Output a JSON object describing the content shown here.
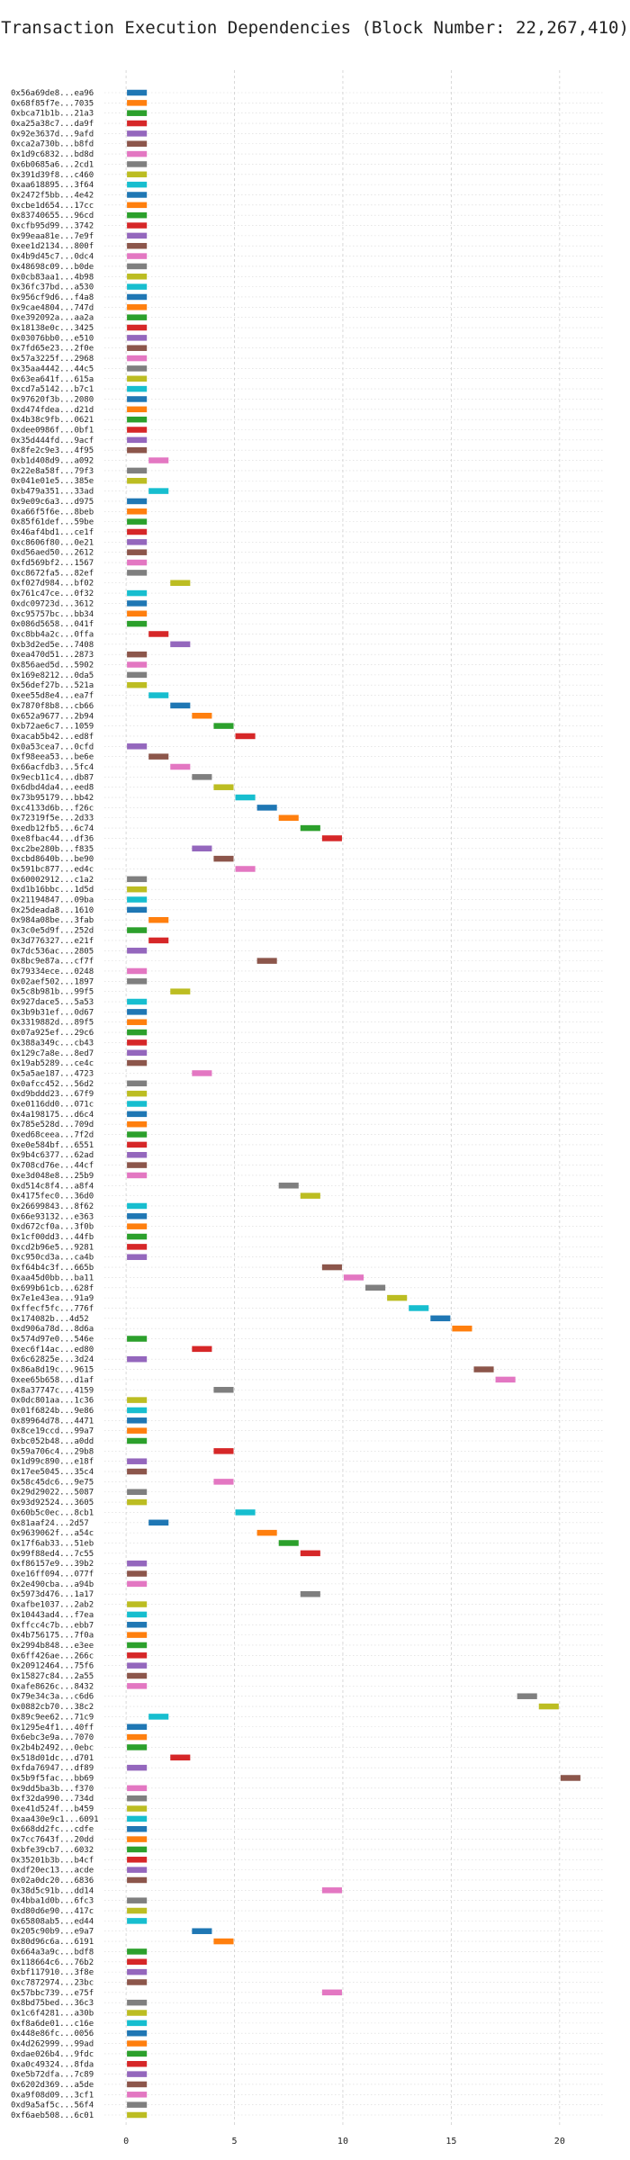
{
  "title": "Transaction Execution Dependencies (Block Number: 22,267,410)",
  "palette": [
    "#1f77b4",
    "#ff7f0e",
    "#2ca02c",
    "#d62728",
    "#9467bd",
    "#8c564b",
    "#e377c2",
    "#7f7f7f",
    "#bcbd22",
    "#17becf"
  ],
  "chart_data": {
    "type": "bar",
    "orientation": "horizontal",
    "title": "Transaction Execution Dependencies (Block Number: 22,267,410)",
    "xlabel": "",
    "ylabel": "",
    "xlim": [
      -1,
      22
    ],
    "xticks": [
      0,
      5,
      10,
      15,
      20
    ],
    "grid": true,
    "categories": [
      "0x56a69de8...ea96",
      "0x68f85f7e...7035",
      "0xbca71b1b...21a3",
      "0xa25a38c7...da9f",
      "0x92e3637d...9afd",
      "0xca2a730b...b8fd",
      "0x1d9c6832...bd8d",
      "0x6b0685a6...2cd1",
      "0x391d39f8...c460",
      "0xaa618895...3f64",
      "0x2472f5bb...4e42",
      "0xcbe1d654...17cc",
      "0x83740655...96cd",
      "0xcfb95d99...3742",
      "0x99eaa81e...7e9f",
      "0xee1d2134...800f",
      "0x4b9d45c7...0dc4",
      "0x48698c09...b0de",
      "0x0cb83aa1...4b98",
      "0x36fc37bd...a530",
      "0x956cf9d6...f4a8",
      "0x9cae4804...747d",
      "0xe392092a...aa2a",
      "0x18138e0c...3425",
      "0x03076bb0...e510",
      "0x7fd65e23...2f0e",
      "0x57a3225f...2968",
      "0x35aa4442...44c5",
      "0x63ea641f...615a",
      "0xcd7a5142...b7c1",
      "0x97620f3b...2080",
      "0xd474fdea...d21d",
      "0x4b38c9fb...0621",
      "0xdee0986f...0bf1",
      "0x35d444fd...9acf",
      "0x8fe2c9e3...4f95",
      "0xb1d408d9...a092",
      "0x22e8a58f...79f3",
      "0x041e01e5...385e",
      "0xb479a351...33ad",
      "0x9e09c6a3...d975",
      "0xa66f5f6e...8beb",
      "0x85f61def...59be",
      "0x46af4bd1...ce1f",
      "0xc8606f80...0e21",
      "0xd56aed50...2612",
      "0xfd569bf2...1567",
      "0xc8672fa5...82ef",
      "0xf027d984...bf02",
      "0x761c47ce...0f32",
      "0xdc09723d...3612",
      "0xc95757bc...bb34",
      "0x086d5658...041f",
      "0xc8bb4a2c...0ffa",
      "0xb3d2ed5e...7408",
      "0xea470d51...2873",
      "0x856aed5d...5902",
      "0x169e8212...0da5",
      "0x56def27b...521a",
      "0xee55d8e4...ea7f",
      "0x7870f8b8...cb66",
      "0x652a9677...2b94",
      "0xb72ae6c7...1059",
      "0xacab5b42...ed8f",
      "0x0a53cea7...0cfd",
      "0xf98eea53...be6e",
      "0x66acfdb3...5fc4",
      "0x9ecb11c4...db87",
      "0x6dbd4da4...eed8",
      "0x73b95179...bb42",
      "0xc4133d6b...f26c",
      "0x72319f5e...2d33",
      "0xedb12fb5...6c74",
      "0xe8fbac44...df36",
      "0xc2be280b...f835",
      "0xcbd8640b...be90",
      "0x591bc877...ed4c",
      "0x60002912...c1a2",
      "0xd1b16bbc...1d5d",
      "0x21194847...09ba",
      "0x25deada8...1610",
      "0x984a08be...3fab",
      "0x3c0e5d9f...252d",
      "0x3d776327...e21f",
      "0x7dc536ac...2805",
      "0x8bc9e87a...cf7f",
      "0x79334ece...0248",
      "0x02aef502...1897",
      "0x5c8b981b...99f5",
      "0x927dace5...5a53",
      "0x3b9b31ef...0d67",
      "0x3319882d...89f5",
      "0x07a925ef...29c6",
      "0x388a349c...cb43",
      "0x129c7a8e...8ed7",
      "0x19ab5289...ce4c",
      "0x5a5ae187...4723",
      "0x0afcc452...56d2",
      "0xd9bddd23...67f9",
      "0xe0116dd0...071c",
      "0x4a198175...d6c4",
      "0x785e528d...709d",
      "0xed68ceea...7f2d",
      "0xe0e584bf...6551",
      "0x9b4c6377...62ad",
      "0x708cd76e...44cf",
      "0xe3d048e8...25b9",
      "0xd514c8f4...a8f4",
      "0x4175fec0...36d0",
      "0x26699843...8f62",
      "0x66e93132...e363",
      "0xd672cf0a...3f0b",
      "0x1cf00dd3...44fb",
      "0xcd2b96e5...9281",
      "0xc950cd3a...ca4b",
      "0xf64b4c3f...665b",
      "0xaa45d0bb...ba11",
      "0x699b61cb...628f",
      "0x7e1e43ea...91a9",
      "0xffecf5fc...776f",
      "0x174082b...4d52",
      "0xd906a78d...8d6a",
      "0x574d97e0...546e",
      "0xec6f14ac...ed80",
      "0x6c62825e...3d24",
      "0x86a8d19c...9615",
      "0xee65b658...d1af",
      "0x8a37747c...4159",
      "0x0dc801aa...1c36",
      "0x01f6824b...9e86",
      "0x89964d78...4471",
      "0x8ce19ccd...99a7",
      "0xbc052b48...a0dd",
      "0x59a706c4...29b8",
      "0x1d99c890...e18f",
      "0x17ee5045...35c4",
      "0x58c45dc6...9e75",
      "0x29d29022...5087",
      "0x93d92524...3605",
      "0x60b5c0ec...8cb1",
      "0x81aaf24...2d57",
      "0x9639062f...a54c",
      "0x17f6ab33...51eb",
      "0x99f88ed4...7c55",
      "0xf86157e9...39b2",
      "0xe16ff094...077f",
      "0x2e490cba...a94b",
      "0x5973d476...1a17",
      "0xafbe1037...2ab2",
      "0x10443ad4...f7ea",
      "0xffcc4c7b...ebb7",
      "0x4b756175...7f0a",
      "0x2994b848...e3ee",
      "0x6ff426ae...266c",
      "0x20912464...75f6",
      "0x15827c84...2a55",
      "0xafe8626c...8432",
      "0x79e34c3a...c6d6",
      "0x0882cb70...38c2",
      "0x89c9ee62...71c9",
      "0x1295e4f1...40ff",
      "0x6ebc3e9a...7070",
      "0x2b4b2492...0ebc",
      "0x518d01dc...d701",
      "0xfda76947...df89",
      "0x5b9f5fac...bb69",
      "0x9dd5ba3b...f370",
      "0xf32da990...734d",
      "0xe41d524f...b459",
      "0xaa430e9c1...6091",
      "0x668dd2fc...cdfe",
      "0x7cc7643f...20dd",
      "0xbfe39cb7...6032",
      "0x35201b3b...b4cf",
      "0xdf20ec13...acde",
      "0x02a0dc20...6836",
      "0x38d5c91b...dd14",
      "0x4bba1d0b...6fc3",
      "0xd80d6e90...417c",
      "0x65808ab5...ed44",
      "0x205c90b9...e9a7",
      "0x80d96c6a...6191",
      "0x664a3a9c...bdf8",
      "0x118664c6...76b2",
      "0xbf117910...3f8e",
      "0xc7872974...23bc",
      "0x57bbc739...e75f",
      "0x8bd75bed...36c3",
      "0x1c6f4281...a30b",
      "0xf8a6de01...c16e",
      "0x448e86fc...0056",
      "0x4d262999...99ad",
      "0xdae026b4...9fdc",
      "0xa0c49324...8fda",
      "0xe5b72dfa...7c89",
      "0x6202d369...a5de",
      "0xa9f08d09...3cf1",
      "0xd9a5af5c...56f4",
      "0xf6aeb508...6c01"
    ],
    "bars": [
      {
        "start": 0,
        "end": 1
      },
      {
        "start": 0,
        "end": 1
      },
      {
        "start": 0,
        "end": 1
      },
      {
        "start": 0,
        "end": 1
      },
      {
        "start": 0,
        "end": 1
      },
      {
        "start": 0,
        "end": 1
      },
      {
        "start": 0,
        "end": 1
      },
      {
        "start": 0,
        "end": 1
      },
      {
        "start": 0,
        "end": 1
      },
      {
        "start": 0,
        "end": 1
      },
      {
        "start": 0,
        "end": 1
      },
      {
        "start": 0,
        "end": 1
      },
      {
        "start": 0,
        "end": 1
      },
      {
        "start": 0,
        "end": 1
      },
      {
        "start": 0,
        "end": 1
      },
      {
        "start": 0,
        "end": 1
      },
      {
        "start": 0,
        "end": 1
      },
      {
        "start": 0,
        "end": 1
      },
      {
        "start": 0,
        "end": 1
      },
      {
        "start": 0,
        "end": 1
      },
      {
        "start": 0,
        "end": 1
      },
      {
        "start": 0,
        "end": 1
      },
      {
        "start": 0,
        "end": 1
      },
      {
        "start": 0,
        "end": 1
      },
      {
        "start": 0,
        "end": 1
      },
      {
        "start": 0,
        "end": 1
      },
      {
        "start": 0,
        "end": 1
      },
      {
        "start": 0,
        "end": 1
      },
      {
        "start": 0,
        "end": 1
      },
      {
        "start": 0,
        "end": 1
      },
      {
        "start": 0,
        "end": 1
      },
      {
        "start": 0,
        "end": 1
      },
      {
        "start": 0,
        "end": 1
      },
      {
        "start": 0,
        "end": 1
      },
      {
        "start": 0,
        "end": 1
      },
      {
        "start": 0,
        "end": 1
      },
      {
        "start": 1,
        "end": 2
      },
      {
        "start": 0,
        "end": 1
      },
      {
        "start": 0,
        "end": 1
      },
      {
        "start": 1,
        "end": 2
      },
      {
        "start": 0,
        "end": 1
      },
      {
        "start": 0,
        "end": 1
      },
      {
        "start": 0,
        "end": 1
      },
      {
        "start": 0,
        "end": 1
      },
      {
        "start": 0,
        "end": 1
      },
      {
        "start": 0,
        "end": 1
      },
      {
        "start": 0,
        "end": 1
      },
      {
        "start": 0,
        "end": 1
      },
      {
        "start": 2,
        "end": 3
      },
      {
        "start": 0,
        "end": 1
      },
      {
        "start": 0,
        "end": 1
      },
      {
        "start": 0,
        "end": 1
      },
      {
        "start": 0,
        "end": 1
      },
      {
        "start": 1,
        "end": 2
      },
      {
        "start": 2,
        "end": 3
      },
      {
        "start": 0,
        "end": 1
      },
      {
        "start": 0,
        "end": 1
      },
      {
        "start": 0,
        "end": 1
      },
      {
        "start": 0,
        "end": 1
      },
      {
        "start": 1,
        "end": 2
      },
      {
        "start": 2,
        "end": 3
      },
      {
        "start": 3,
        "end": 4
      },
      {
        "start": 4,
        "end": 5
      },
      {
        "start": 5,
        "end": 6
      },
      {
        "start": 0,
        "end": 1
      },
      {
        "start": 1,
        "end": 2
      },
      {
        "start": 2,
        "end": 3
      },
      {
        "start": 3,
        "end": 4
      },
      {
        "start": 4,
        "end": 5
      },
      {
        "start": 5,
        "end": 6
      },
      {
        "start": 6,
        "end": 7
      },
      {
        "start": 7,
        "end": 8
      },
      {
        "start": 8,
        "end": 9
      },
      {
        "start": 9,
        "end": 10
      },
      {
        "start": 3,
        "end": 4
      },
      {
        "start": 4,
        "end": 5
      },
      {
        "start": 5,
        "end": 6
      },
      {
        "start": 0,
        "end": 1
      },
      {
        "start": 0,
        "end": 1
      },
      {
        "start": 0,
        "end": 1
      },
      {
        "start": 0,
        "end": 1
      },
      {
        "start": 1,
        "end": 2
      },
      {
        "start": 0,
        "end": 1
      },
      {
        "start": 1,
        "end": 2
      },
      {
        "start": 0,
        "end": 1
      },
      {
        "start": 6,
        "end": 7
      },
      {
        "start": 0,
        "end": 1
      },
      {
        "start": 0,
        "end": 1
      },
      {
        "start": 2,
        "end": 3
      },
      {
        "start": 0,
        "end": 1
      },
      {
        "start": 0,
        "end": 1
      },
      {
        "start": 0,
        "end": 1
      },
      {
        "start": 0,
        "end": 1
      },
      {
        "start": 0,
        "end": 1
      },
      {
        "start": 0,
        "end": 1
      },
      {
        "start": 0,
        "end": 1
      },
      {
        "start": 3,
        "end": 4
      },
      {
        "start": 0,
        "end": 1
      },
      {
        "start": 0,
        "end": 1
      },
      {
        "start": 0,
        "end": 1
      },
      {
        "start": 0,
        "end": 1
      },
      {
        "start": 0,
        "end": 1
      },
      {
        "start": 0,
        "end": 1
      },
      {
        "start": 0,
        "end": 1
      },
      {
        "start": 0,
        "end": 1
      },
      {
        "start": 0,
        "end": 1
      },
      {
        "start": 0,
        "end": 1
      },
      {
        "start": 7,
        "end": 8
      },
      {
        "start": 8,
        "end": 9
      },
      {
        "start": 0,
        "end": 1
      },
      {
        "start": 0,
        "end": 1
      },
      {
        "start": 0,
        "end": 1
      },
      {
        "start": 0,
        "end": 1
      },
      {
        "start": 0,
        "end": 1
      },
      {
        "start": 0,
        "end": 1
      },
      {
        "start": 9,
        "end": 10
      },
      {
        "start": 10,
        "end": 11
      },
      {
        "start": 11,
        "end": 12
      },
      {
        "start": 12,
        "end": 13
      },
      {
        "start": 13,
        "end": 14
      },
      {
        "start": 14,
        "end": 15
      },
      {
        "start": 15,
        "end": 16
      },
      {
        "start": 0,
        "end": 1
      },
      {
        "start": 3,
        "end": 4
      },
      {
        "start": 0,
        "end": 1
      },
      {
        "start": 16,
        "end": 17
      },
      {
        "start": 17,
        "end": 18
      },
      {
        "start": 4,
        "end": 5
      },
      {
        "start": 0,
        "end": 1
      },
      {
        "start": 0,
        "end": 1
      },
      {
        "start": 0,
        "end": 1
      },
      {
        "start": 0,
        "end": 1
      },
      {
        "start": 0,
        "end": 1
      },
      {
        "start": 4,
        "end": 5
      },
      {
        "start": 0,
        "end": 1
      },
      {
        "start": 0,
        "end": 1
      },
      {
        "start": 4,
        "end": 5
      },
      {
        "start": 0,
        "end": 1
      },
      {
        "start": 0,
        "end": 1
      },
      {
        "start": 5,
        "end": 6
      },
      {
        "start": 1,
        "end": 2
      },
      {
        "start": 6,
        "end": 7
      },
      {
        "start": 7,
        "end": 8
      },
      {
        "start": 8,
        "end": 9
      },
      {
        "start": 0,
        "end": 1
      },
      {
        "start": 0,
        "end": 1
      },
      {
        "start": 0,
        "end": 1
      },
      {
        "start": 8,
        "end": 9
      },
      {
        "start": 0,
        "end": 1
      },
      {
        "start": 0,
        "end": 1
      },
      {
        "start": 0,
        "end": 1
      },
      {
        "start": 0,
        "end": 1
      },
      {
        "start": 0,
        "end": 1
      },
      {
        "start": 0,
        "end": 1
      },
      {
        "start": 0,
        "end": 1
      },
      {
        "start": 0,
        "end": 1
      },
      {
        "start": 0,
        "end": 1
      },
      {
        "start": 18,
        "end": 19
      },
      {
        "start": 19,
        "end": 20
      },
      {
        "start": 1,
        "end": 2
      },
      {
        "start": 0,
        "end": 1
      },
      {
        "start": 0,
        "end": 1
      },
      {
        "start": 0,
        "end": 1
      },
      {
        "start": 2,
        "end": 3
      },
      {
        "start": 0,
        "end": 1
      },
      {
        "start": 20,
        "end": 21
      },
      {
        "start": 0,
        "end": 1
      },
      {
        "start": 0,
        "end": 1
      },
      {
        "start": 0,
        "end": 1
      },
      {
        "start": 0,
        "end": 1
      },
      {
        "start": 0,
        "end": 1
      },
      {
        "start": 0,
        "end": 1
      },
      {
        "start": 0,
        "end": 1
      },
      {
        "start": 0,
        "end": 1
      },
      {
        "start": 0,
        "end": 1
      },
      {
        "start": 0,
        "end": 1
      },
      {
        "start": 9,
        "end": 10
      },
      {
        "start": 0,
        "end": 1
      },
      {
        "start": 0,
        "end": 1
      },
      {
        "start": 0,
        "end": 1
      },
      {
        "start": 3,
        "end": 4
      },
      {
        "start": 4,
        "end": 5
      },
      {
        "start": 0,
        "end": 1
      },
      {
        "start": 0,
        "end": 1
      },
      {
        "start": 0,
        "end": 1
      },
      {
        "start": 0,
        "end": 1
      },
      {
        "start": 9,
        "end": 10
      },
      {
        "start": 0,
        "end": 1
      },
      {
        "start": 0,
        "end": 1
      },
      {
        "start": 0,
        "end": 1
      },
      {
        "start": 0,
        "end": 1
      },
      {
        "start": 0,
        "end": 1
      },
      {
        "start": 0,
        "end": 1
      },
      {
        "start": 0,
        "end": 1
      },
      {
        "start": 0,
        "end": 1
      },
      {
        "start": 0,
        "end": 1
      },
      {
        "start": 0,
        "end": 1
      },
      {
        "start": 0,
        "end": 1
      },
      {
        "start": 0,
        "end": 1
      },
      {
        "start": 0,
        "end": 1
      }
    ]
  }
}
